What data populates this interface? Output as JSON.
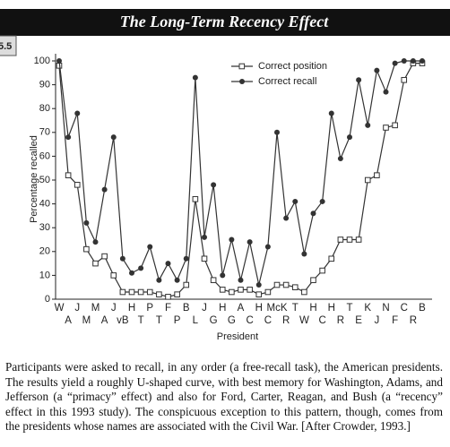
{
  "figure_number": "5.5",
  "chart_data": {
    "type": "line",
    "title": "The Long-Term Recency Effect",
    "xlabel": "President",
    "ylabel": "Percentage recalled",
    "categories": [
      "W",
      "A",
      "J",
      "M",
      "M",
      "A",
      "J",
      "vB",
      "H",
      "T",
      "P",
      "T",
      "F",
      "P",
      "B",
      "L",
      "J",
      "G",
      "H",
      "G",
      "A",
      "C",
      "H",
      "C",
      "McK",
      "R",
      "T",
      "W",
      "H",
      "C",
      "H",
      "R",
      "T",
      "E",
      "K",
      "J",
      "N",
      "F",
      "C",
      "R",
      "B"
    ],
    "series": [
      {
        "name": "Correct position",
        "color": "#333333",
        "marker": "square",
        "values": [
          98,
          52,
          48,
          21,
          15,
          18,
          10,
          3,
          3,
          3,
          3,
          2,
          1,
          2,
          6,
          42,
          17,
          8,
          4,
          3,
          4,
          4,
          2,
          3,
          6,
          6,
          5,
          3,
          8,
          12,
          17,
          25,
          25,
          25,
          50,
          52,
          72,
          73,
          92,
          99,
          99
        ]
      },
      {
        "name": "Correct recall",
        "color": "#333333",
        "marker": "circle",
        "values": [
          100,
          68,
          78,
          32,
          24,
          46,
          68,
          17,
          11,
          13,
          22,
          8,
          15,
          8,
          17,
          93,
          26,
          48,
          10,
          25,
          8,
          24,
          6,
          22,
          70,
          34,
          41,
          19,
          36,
          41,
          78,
          59,
          68,
          92,
          73,
          96,
          87,
          99,
          100,
          100,
          100
        ]
      }
    ],
    "ylim": [
      0,
      100
    ],
    "yticks": [
      0,
      10,
      20,
      30,
      40,
      50,
      60,
      70,
      80,
      90,
      100
    ],
    "grid": false,
    "legend": "top"
  },
  "caption": "Participants were asked to recall, in any order (a free-recall task), the American presidents. The results yield a roughly U-shaped curve, with best memory for Washington, Adams, and Jefferson (a “primacy” effect) and also for Ford, Carter, Reagan, and Bush (a “recency” effect in this 1993 study). The conspicuous exception to this pattern, though, comes from the presidents whose names are associated with the Civil War. [After Crowder, 1993.]"
}
